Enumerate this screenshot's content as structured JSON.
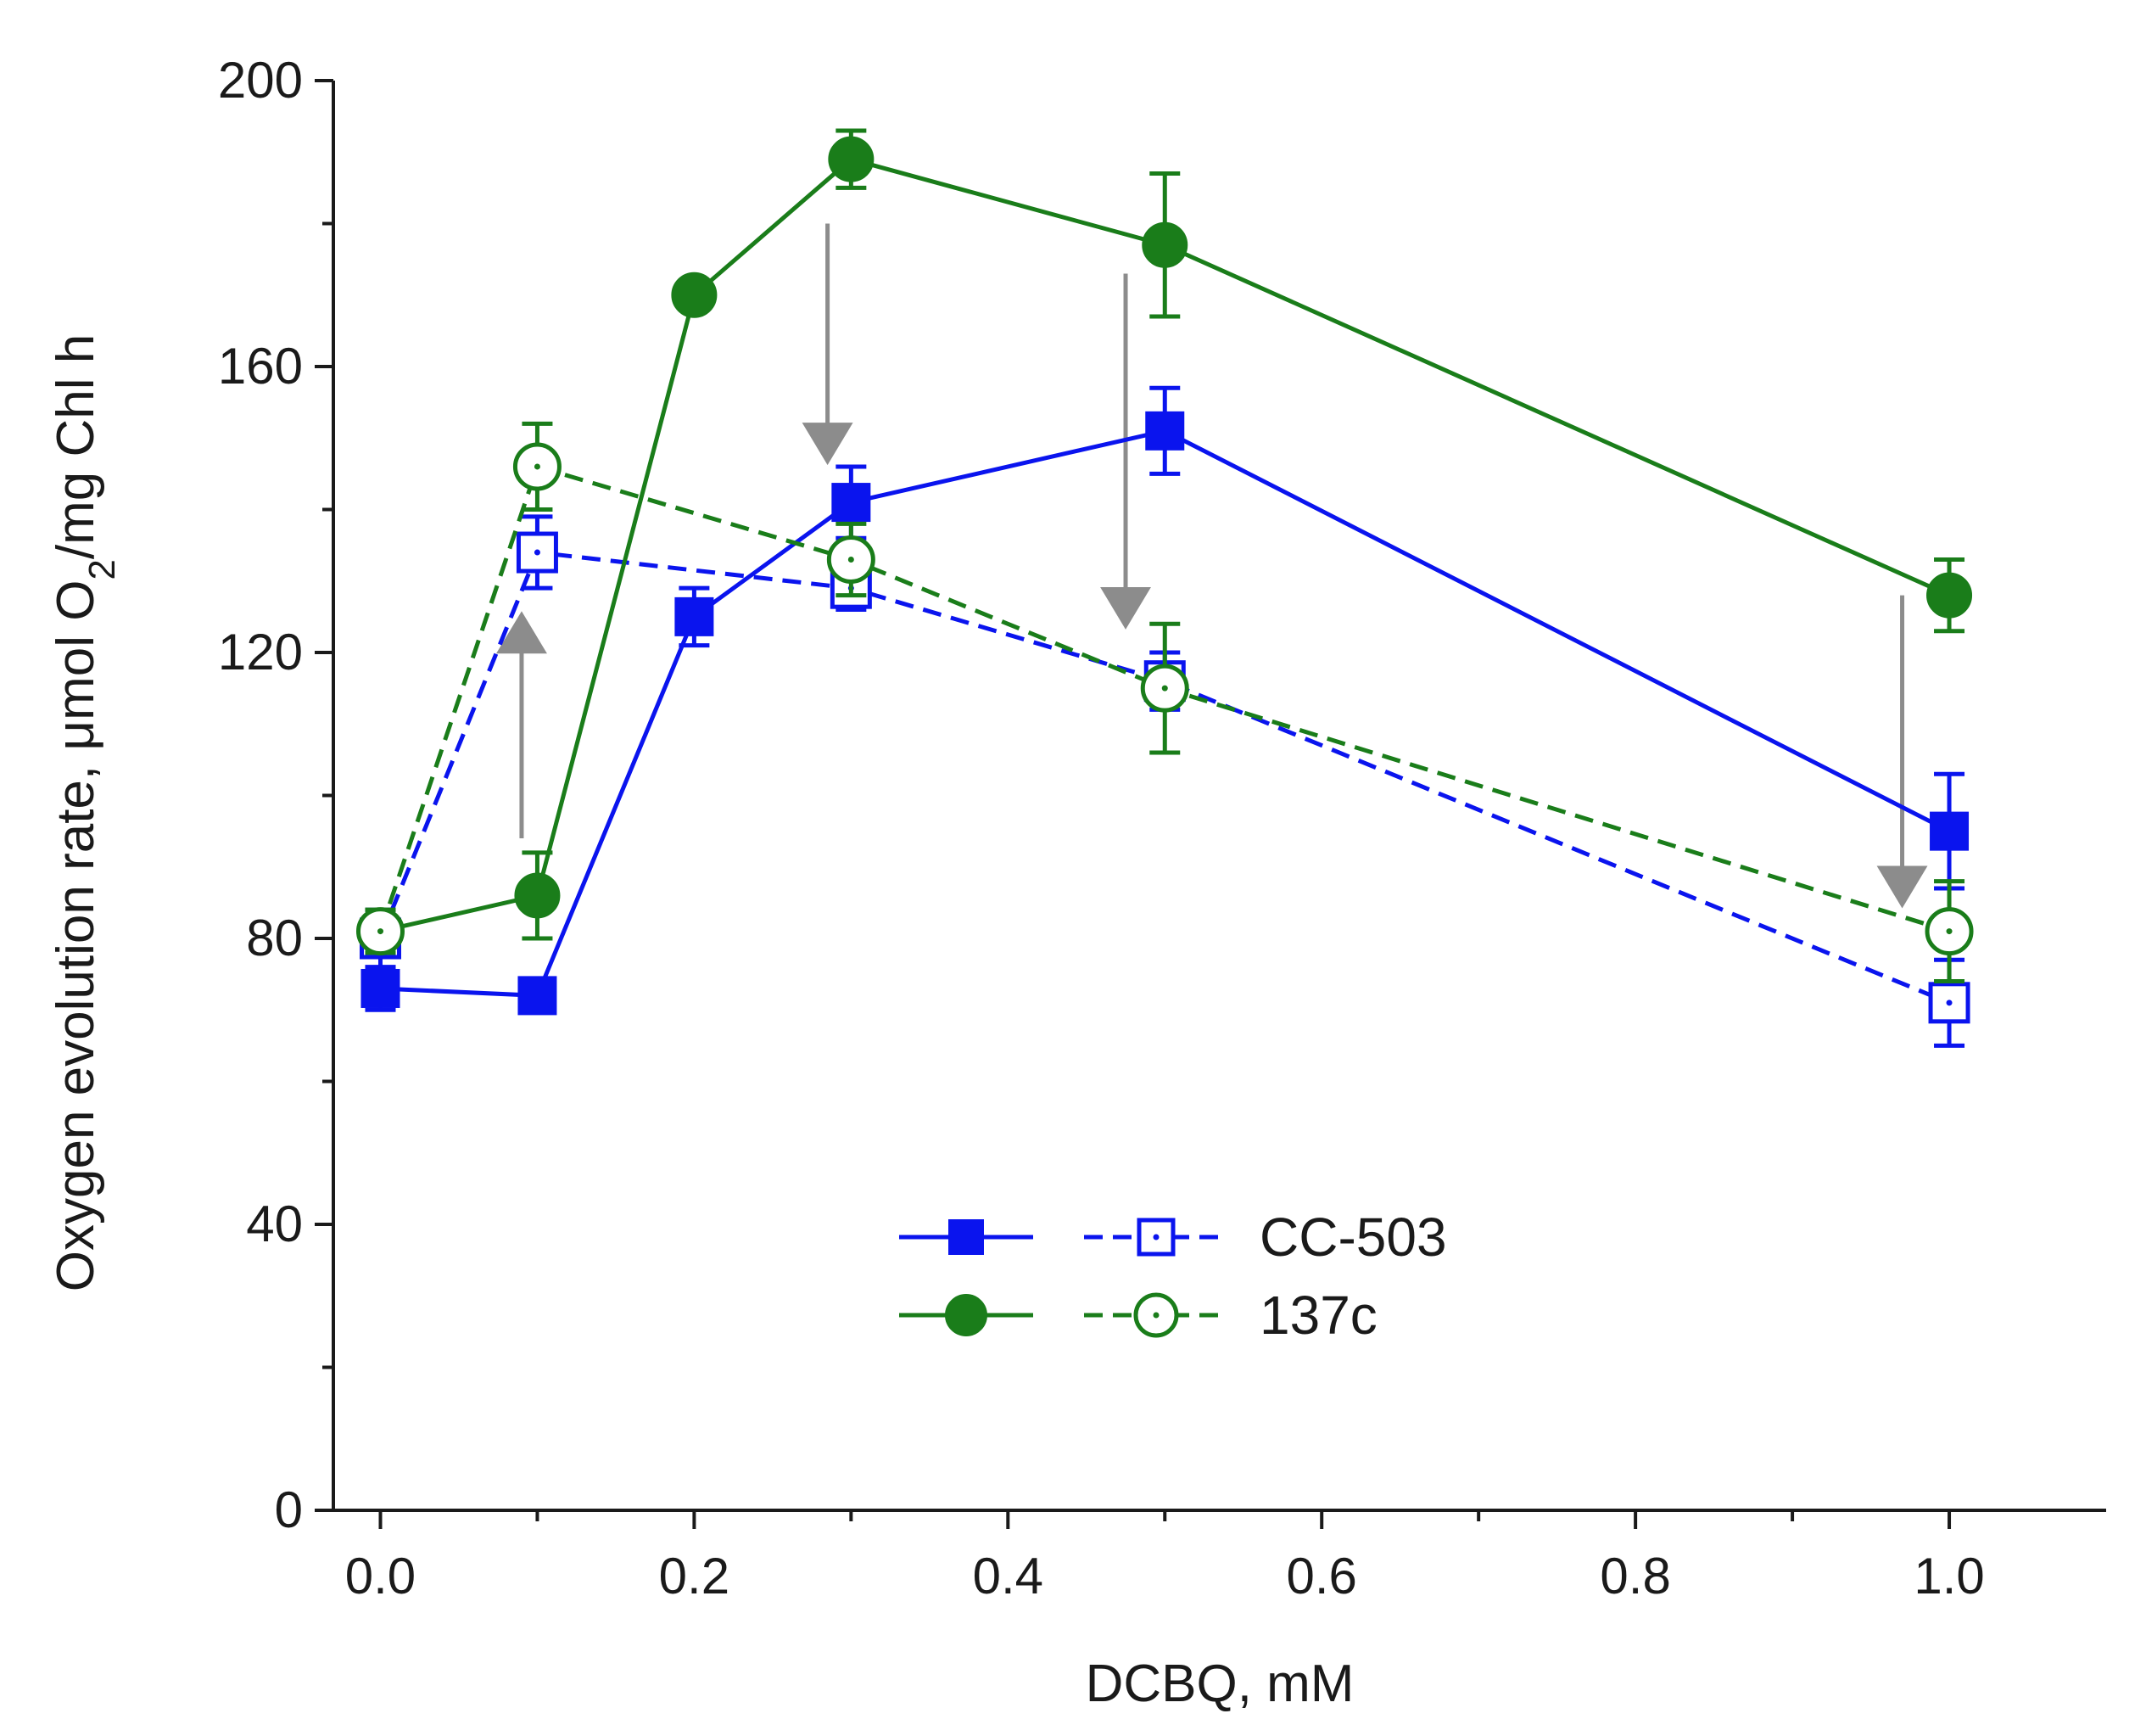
{
  "chart_data": {
    "type": "line",
    "xlabel": "DCBQ, mM",
    "ylabel": {
      "prefix": "Oxygen evolution rate, μmol O",
      "subscript": "2",
      "suffix": "/mg Chl h"
    },
    "xlim": [
      -0.03,
      1.1
    ],
    "ylim": [
      0,
      200
    ],
    "x_ticks": [
      "0.0",
      "0.2",
      "0.4",
      "0.6",
      "0.8",
      "1.0"
    ],
    "x_tick_values": [
      0,
      0.2,
      0.4,
      0.6,
      0.8,
      1.0
    ],
    "y_ticks": [
      "0",
      "40",
      "80",
      "120",
      "160",
      "200"
    ],
    "y_tick_values": [
      0,
      40,
      80,
      120,
      160,
      200
    ],
    "grid": false,
    "legend_position": "center",
    "legend": [
      {
        "label": "CC-503",
        "color": "#0a14ee"
      },
      {
        "label": "137c",
        "color": "#1a7d1a"
      }
    ],
    "series": [
      {
        "strain": "CC-503",
        "filled": true,
        "color": "#0a14ee",
        "line": "solid",
        "marker": "square",
        "x": [
          0,
          0.1,
          0.2,
          0.3,
          0.5,
          1.0
        ],
        "y": [
          73,
          72,
          125,
          141,
          151,
          95
        ],
        "err": [
          3,
          2,
          4,
          5,
          6,
          8
        ]
      },
      {
        "strain": "CC-503",
        "filled": false,
        "color": "#0a14ee",
        "line": "dashed",
        "marker": "square",
        "x": [
          0,
          0.1,
          0.3,
          0.5,
          1.0
        ],
        "y": [
          80,
          134,
          129,
          116,
          71
        ],
        "err": [
          4,
          5,
          3,
          4,
          6
        ]
      },
      {
        "strain": "137c",
        "filled": true,
        "color": "#1a7d1a",
        "line": "solid",
        "marker": "circle",
        "x": [
          0,
          0.1,
          0.2,
          0.3,
          0.5,
          1.0
        ],
        "y": [
          81,
          86,
          170,
          189,
          177,
          128
        ],
        "err": [
          3,
          6,
          0,
          4,
          10,
          5
        ]
      },
      {
        "strain": "137c",
        "filled": false,
        "color": "#1a7d1a",
        "line": "dashed",
        "marker": "circle",
        "x": [
          0,
          0.1,
          0.3,
          0.5,
          1.0
        ],
        "y": [
          81,
          146,
          133,
          115,
          81
        ],
        "err": [
          3,
          6,
          5,
          9,
          7
        ]
      }
    ],
    "annotations": [
      {
        "type": "arrow",
        "x": 0.09,
        "y_from": 94,
        "y_to": 124,
        "color": "#8c8c8c"
      },
      {
        "type": "arrow",
        "x": 0.285,
        "y_from": 180,
        "y_to": 148,
        "color": "#8c8c8c"
      },
      {
        "type": "arrow",
        "x": 0.475,
        "y_from": 173,
        "y_to": 125,
        "color": "#8c8c8c"
      },
      {
        "type": "arrow",
        "x": 0.97,
        "y_from": 128,
        "y_to": 86,
        "color": "#8c8c8c"
      }
    ]
  }
}
